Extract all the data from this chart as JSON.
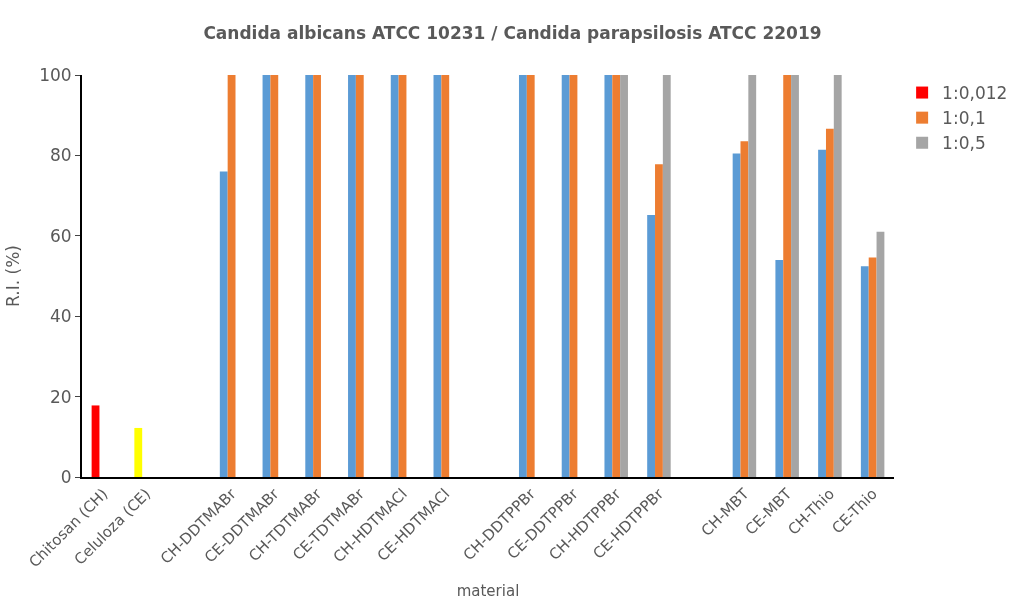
{
  "chart_data": {
    "type": "bar",
    "title": "Candida albicans ATCC 10231 / Candida parapsilosis ATCC 22019",
    "xlabel": "material",
    "ylabel": "R.I. (%)",
    "categories": [
      "Chitosan (CH)",
      "Celuloza (CE)",
      null,
      "CH-DDTMABr",
      "CE-DDTMABr",
      "CH-TDTMABr",
      "CE-TDTMABr",
      "CH-HDTMACl",
      "CE-HDTMACl",
      null,
      "CH-DDTPPBr",
      "CE-DDTPPBr",
      "CH-HDTPPBr",
      "CE-HDTPPBr",
      null,
      "CH-MBT",
      "CE-MBT",
      "CH-Thio",
      "CE-Thio"
    ],
    "series": [
      {
        "name": "1:0,012",
        "color": "#5b9bd5",
        "colors": [
          "#ff0000",
          "#ffff00",
          "#5b9bd5",
          "#5b9bd5",
          "#5b9bd5",
          "#5b9bd5",
          "#5b9bd5",
          "#5b9bd5",
          "#5b9bd5",
          "#5b9bd5",
          "#5b9bd5",
          "#5b9bd5",
          "#5b9bd5",
          "#5b9bd5",
          "#5b9bd5",
          "#5b9bd5",
          "#5b9bd5",
          "#5b9bd5",
          "#5b9bd5"
        ],
        "values": [
          17.8,
          12.2,
          null,
          76,
          100,
          100,
          100,
          100,
          100,
          null,
          100,
          100,
          100,
          65.2,
          null,
          80.5,
          54,
          81.4,
          52.4
        ]
      },
      {
        "name": "1:0,1",
        "color": "#ed7d31",
        "values": [
          null,
          null,
          null,
          100,
          100,
          100,
          100,
          100,
          100,
          null,
          100,
          100,
          100,
          77.8,
          null,
          83.5,
          100,
          86.6,
          54.6
        ]
      },
      {
        "name": "1:0,5",
        "color": "#a5a5a5",
        "values": [
          null,
          null,
          null,
          null,
          null,
          null,
          null,
          null,
          null,
          null,
          null,
          null,
          100,
          100,
          null,
          100,
          100,
          100,
          61
        ]
      }
    ],
    "ylim": [
      0,
      100
    ],
    "yticks": [
      0,
      20,
      40,
      60,
      80,
      100
    ],
    "grid": false,
    "legend": "top right"
  }
}
